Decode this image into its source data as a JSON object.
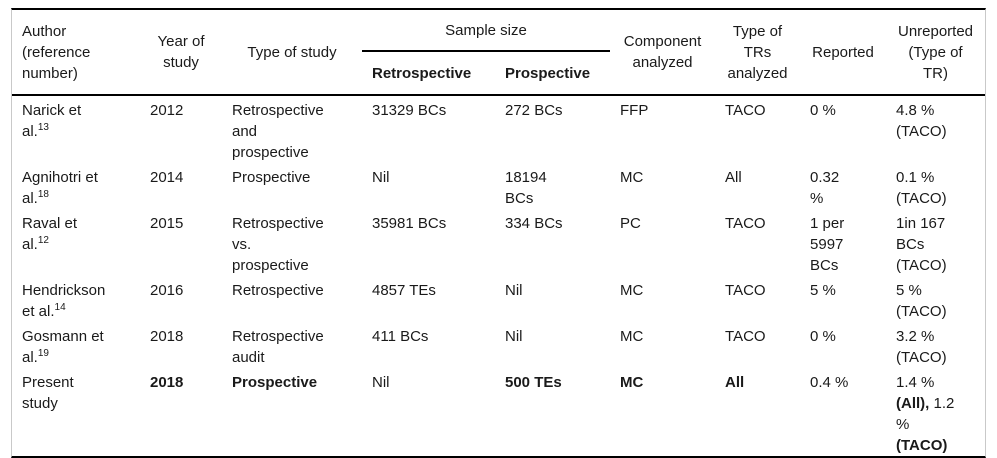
{
  "table": {
    "header": {
      "author": "Author\n(reference\nnumber)",
      "year": "Year of\nstudy",
      "study_type": "Type of study",
      "sample_size": "Sample size",
      "sample_retrospective": "Retrospective",
      "sample_prospective": "Prospective",
      "component": "Component\nanalyzed",
      "tr_type": "Type of\nTRs\nanalyzed",
      "reported": "Reported",
      "unreported": "Unreported\n(Type of\nTR)"
    },
    "rows": [
      {
        "author": "Narick et\nal.",
        "ref": "13",
        "year": "2012",
        "study_type": "Retrospective\nand\nprospective",
        "retrospective": "31329 BCs",
        "prospective": "272 BCs",
        "component": "FFP",
        "tr_type": "TACO",
        "reported": "0 %",
        "unreported": "4.8 %\n(TACO)"
      },
      {
        "author": "Agnihotri et\nal.",
        "ref": "18",
        "year": "2014",
        "study_type": "Prospective",
        "retrospective": "Nil",
        "prospective": "18194\nBCs",
        "component": "MC",
        "tr_type": "All",
        "reported": "0.32\n%",
        "unreported": "0.1 %\n(TACO)"
      },
      {
        "author": "Raval et\nal.",
        "ref": "12",
        "year": "2015",
        "study_type": "Retrospective\nvs.\nprospective",
        "retrospective": "35981 BCs",
        "prospective": "334 BCs",
        "component": "PC",
        "tr_type": "TACO",
        "reported": "1 per\n5997\nBCs",
        "unreported": "1in 167\nBCs\n(TACO)"
      },
      {
        "author": "Hendrickson\net al.",
        "ref": "14",
        "year": "2016",
        "study_type": "Retrospective",
        "retrospective": "4857 TEs",
        "prospective": "Nil",
        "component": "MC",
        "tr_type": "TACO",
        "reported": "5 %",
        "unreported": "5 %\n(TACO)"
      },
      {
        "author": "Gosmann et\nal.",
        "ref": "19",
        "year": "2018",
        "study_type": "Retrospective\naudit",
        "retrospective": "411 BCs",
        "prospective": "Nil",
        "component": "MC",
        "tr_type": "TACO",
        "reported": "0 %",
        "unreported": "3.2 %\n(TACO)"
      },
      {
        "author": "Present\nstudy",
        "ref": "",
        "year": "2018",
        "study_type": "Prospective",
        "retrospective": "Nil",
        "prospective": "500 TEs",
        "component": "MC",
        "tr_type": "All",
        "reported": "0.4 %",
        "unreported_rich": [
          {
            "t": "1.4 %\n",
            "b": false
          },
          {
            "t": "(All),",
            "b": true
          },
          {
            "t": " 1.2\n%\n",
            "b": false
          },
          {
            "t": "(TACO)",
            "b": true
          }
        ]
      }
    ],
    "colors": {
      "rule": "#000000",
      "outer_border": "#c9c9c9",
      "text": "#1a1a1a",
      "background": "#ffffff"
    }
  }
}
